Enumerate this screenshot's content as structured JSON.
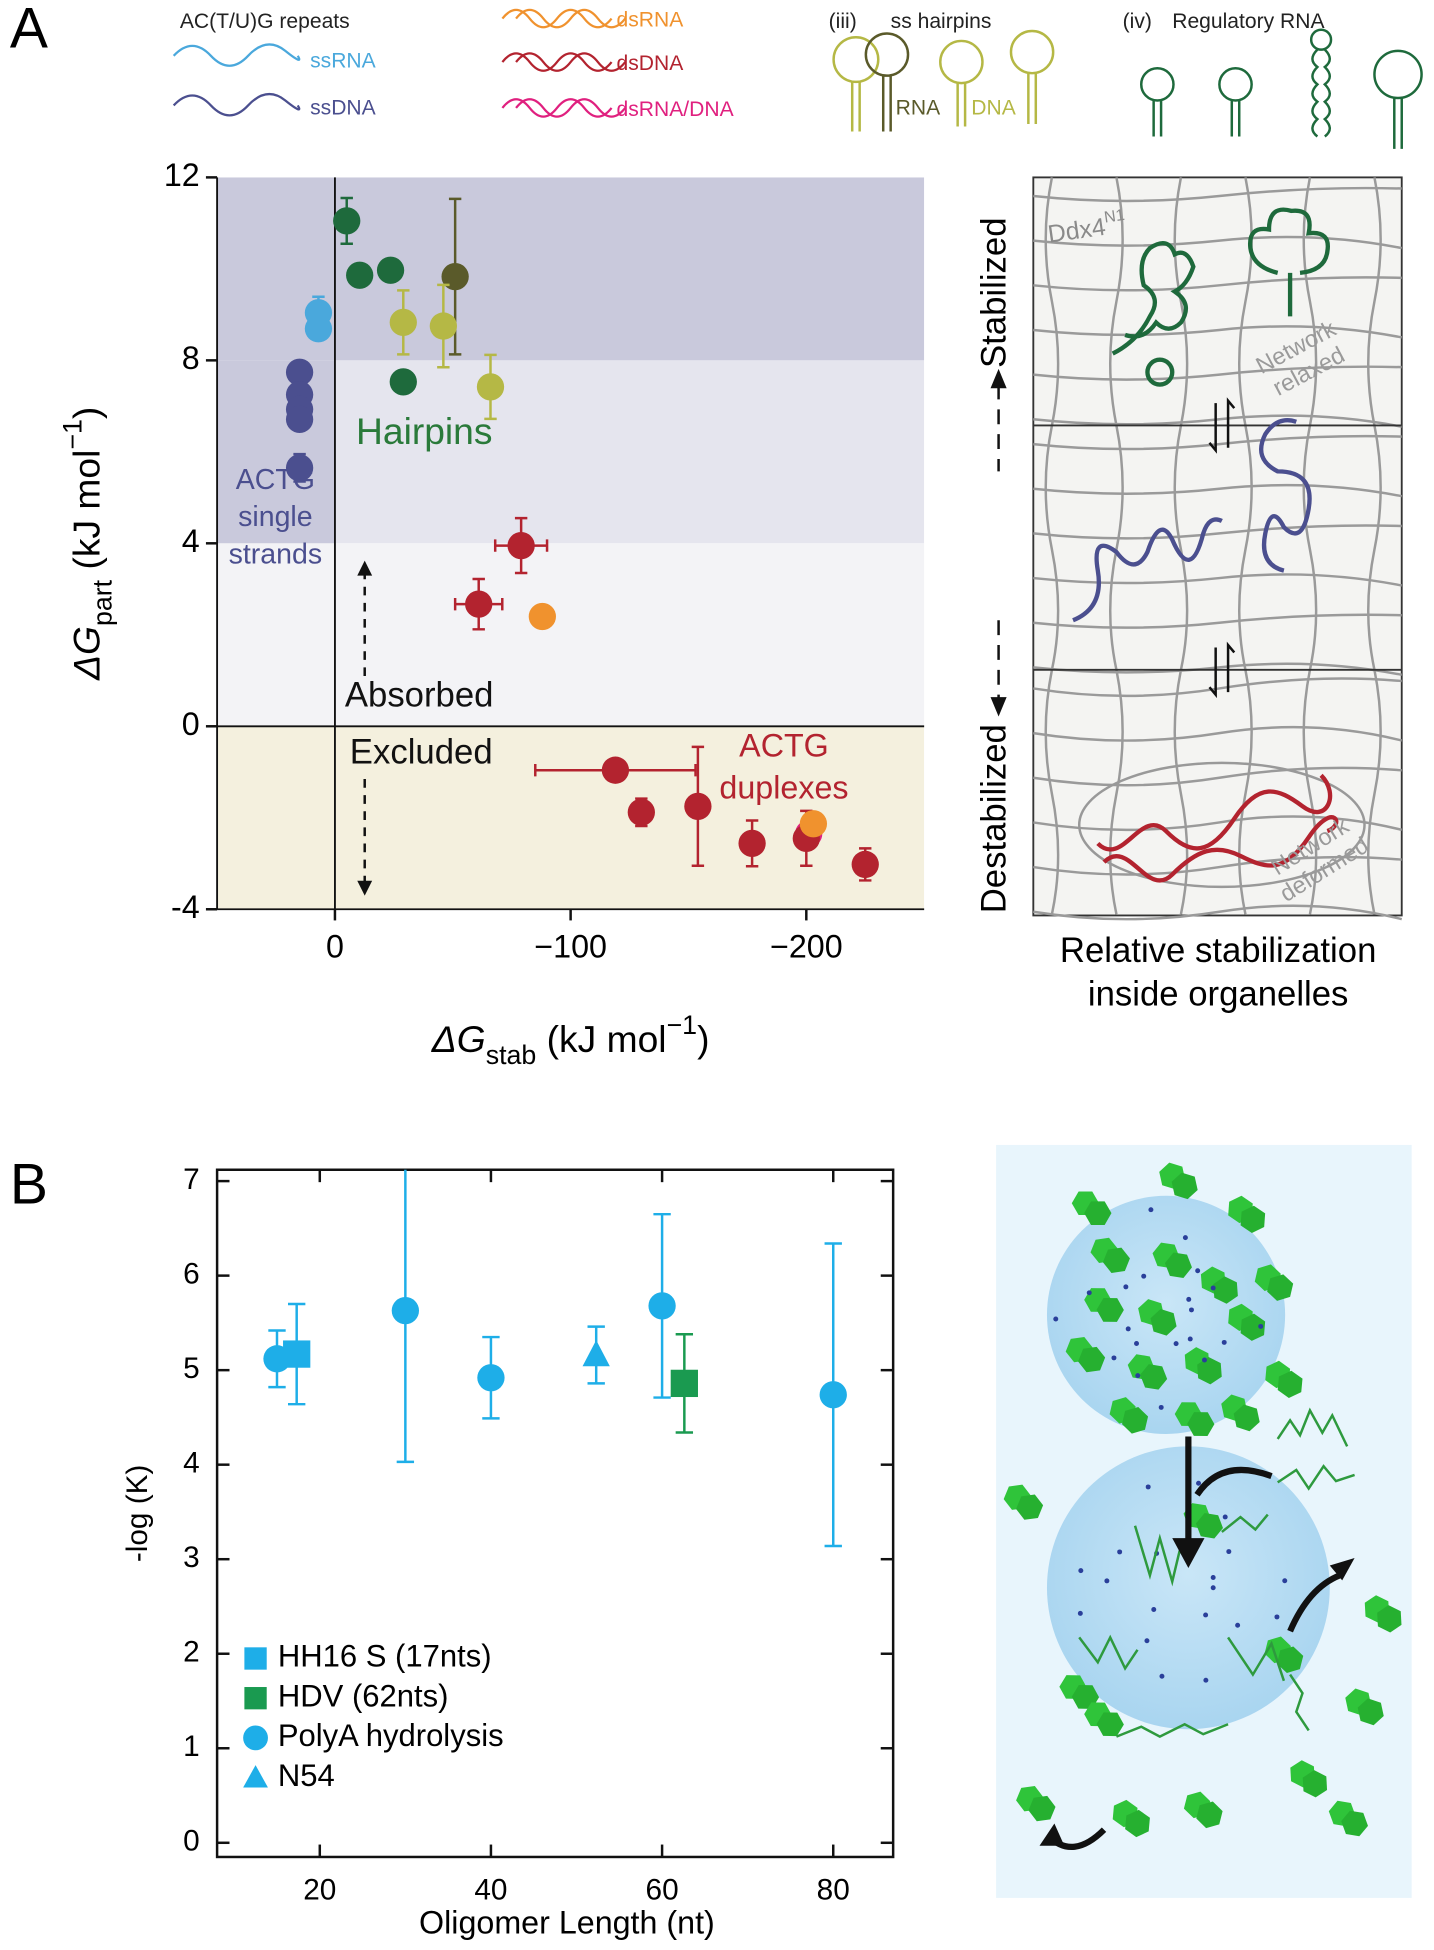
{
  "chart_data": [
    {
      "type": "scatter",
      "panel": "A",
      "xlabel": [
        "ΔG",
        "stab",
        " (kJ mol",
        "−1",
        ")"
      ],
      "ylabel": [
        "ΔG",
        "part",
        " (kJ mol",
        "−1",
        ")"
      ],
      "xlim": [
        50,
        -250
      ],
      "ylim": [
        -4,
        12
      ],
      "xticks": [
        0,
        {
          "value": -100,
          "label": "−100"
        },
        {
          "value": -200,
          "label": "−200"
        }
      ],
      "yticks": [
        -4,
        0,
        4,
        8,
        12
      ],
      "zero_lines": true,
      "regions": [
        {
          "y": [
            8,
            12
          ],
          "color": "#c9c9dc"
        },
        {
          "y": [
            4,
            8
          ],
          "color": "#e5e5ee"
        },
        {
          "x": [
            0,
            50
          ],
          "y": [
            4,
            8
          ],
          "color": "#c9c9dc"
        },
        {
          "y": [
            0,
            4
          ],
          "color": "#f3f3f6"
        },
        {
          "y": [
            -4,
            0
          ],
          "color": "#f4f0de"
        }
      ],
      "legend_headers": [
        "AC(T/U)G  repeats",
        "(iii)",
        "ss hairpins",
        "(iv)"
      ],
      "annotations": [
        {
          "lines": [
            "Hairpins"
          ],
          "color": "#2a7a3a"
        },
        {
          "lines": [
            "ACTG",
            "single",
            "strands"
          ],
          "color": "#4b4f8f"
        },
        {
          "lines": [
            "Absorbed"
          ],
          "color": "#111111"
        },
        {
          "lines": [
            "Excluded"
          ],
          "color": "#111111"
        },
        {
          "lines": [
            "ACTG",
            "duplexes"
          ],
          "color": "#b3232f"
        }
      ],
      "series": [
        {
          "name": "ssRNA",
          "color": "#4aa8dc",
          "x": [
            7,
            7
          ],
          "values": [
            9.04,
            8.69
          ],
          "errors": [
            0.35,
            null
          ]
        },
        {
          "name": "ssDNA",
          "color": "#4b4f8f",
          "x": [
            15,
            15,
            15,
            15,
            15
          ],
          "values": [
            7.74,
            7.25,
            6.93,
            6.71,
            5.65
          ],
          "errors": [
            0.2,
            null,
            null,
            null,
            0.3
          ]
        },
        {
          "name": "dsRNA",
          "color": "#f0922e",
          "x": [
            -88,
            -203
          ],
          "values": [
            2.4,
            -2.13
          ]
        },
        {
          "name": "dsDNA",
          "color": "#b3232f",
          "x": [
            -79,
            -61,
            -119,
            -130,
            -154,
            -177,
            -200,
            -225
          ],
          "values": [
            3.95,
            2.67,
            -0.96,
            -1.88,
            -1.75,
            -2.56,
            -2.45,
            -3.02
          ],
          "errors": [
            0.6,
            0.55,
            null,
            0.3,
            1.3,
            0.5,
            0.6,
            0.35
          ],
          "xerrors": [
            11,
            10,
            34,
            null,
            null,
            null,
            null,
            null
          ]
        },
        {
          "name": "dsRNA/DNA",
          "color": "#e0207f",
          "x": [
            -201
          ],
          "values": [
            -2.35
          ]
        },
        {
          "name": "RNA",
          "color": "#5a5a2a",
          "x": [
            -51
          ],
          "values": [
            9.83
          ],
          "errors": [
            1.7
          ]
        },
        {
          "name": "DNA",
          "color": "#b5b845",
          "x": [
            -29,
            -46,
            -66
          ],
          "values": [
            8.83,
            8.75,
            7.42
          ],
          "errors": [
            0.7,
            0.9,
            0.7
          ]
        },
        {
          "name": "Regulatory RNA",
          "color": "#1e6a3c",
          "x": [
            -5,
            -10.5,
            -23.6,
            -29
          ],
          "values": [
            11.05,
            9.86,
            9.97,
            7.53
          ],
          "errors": [
            0.5,
            null,
            null,
            null
          ]
        }
      ]
    },
    {
      "type": "scatter",
      "panel": "B",
      "xlabel": "Oligomer Length (nt)",
      "ylabel": "-log (K)",
      "xlim": [
        8,
        87
      ],
      "ylim": [
        -0.15,
        7.12
      ],
      "xticks": [
        20,
        40,
        60,
        80
      ],
      "yticks": [
        0,
        1,
        2,
        3,
        4,
        5,
        6,
        7
      ],
      "legend": "lower left",
      "series": [
        {
          "name": "HH16 S (17nts)",
          "color": "#1eaee8",
          "marker": "square",
          "x": [
            17.3
          ],
          "values": [
            5.17
          ],
          "errors": [
            0.53
          ]
        },
        {
          "name": "HDV (62nts)",
          "color": "#1a9a50",
          "marker": "square",
          "x": [
            62.6
          ],
          "values": [
            4.86
          ],
          "errors": [
            0.52
          ]
        },
        {
          "name": "PolyA hydrolysis",
          "color": "#1eaee8",
          "marker": "circle",
          "x": [
            15,
            30,
            40,
            60,
            80
          ],
          "values": [
            5.12,
            5.63,
            4.92,
            5.68,
            4.74
          ],
          "errors": [
            0.3,
            1.6,
            0.43,
            0.97,
            1.6
          ]
        },
        {
          "name": "N54",
          "color": "#1eaee8",
          "marker": "triangle",
          "x": [
            52.3
          ],
          "values": [
            5.16
          ],
          "errors": [
            0.3
          ]
        }
      ]
    }
  ],
  "diagram_a": {
    "ddx4": "Ddx4",
    "ddx4_sup": "N1",
    "top": "Stabilized",
    "bottom": "Destabilized",
    "relaxed": [
      "Network",
      "relaxed"
    ],
    "deformed": [
      "Network",
      "deformed"
    ],
    "caption": [
      "Relative stabilization",
      "inside organelles"
    ]
  }
}
